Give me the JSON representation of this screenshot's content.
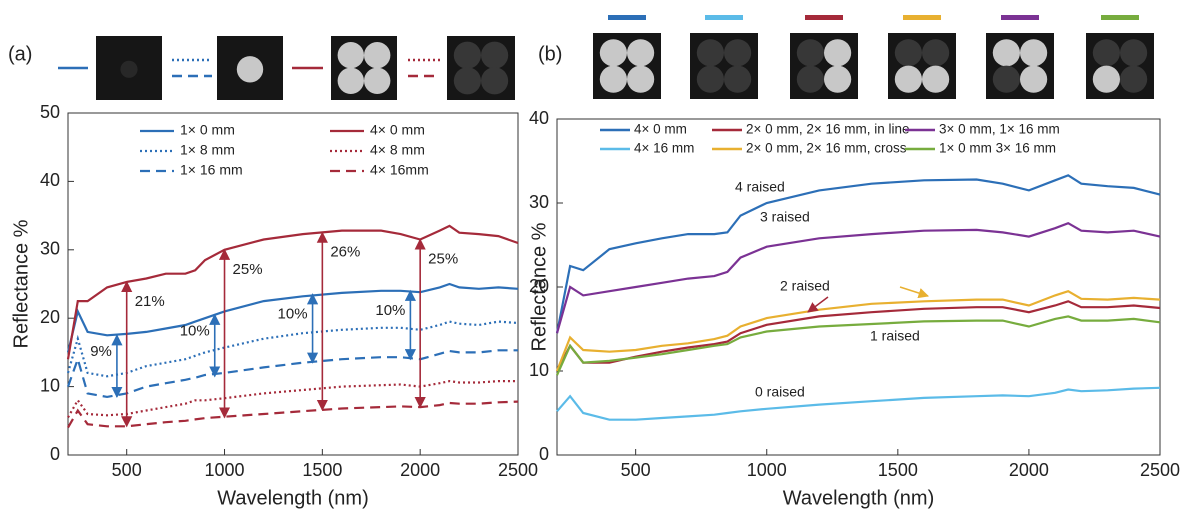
{
  "chart_data": [
    {
      "type": "line",
      "panel_label": "(a)",
      "xlabel": "Wavelength (nm)",
      "ylabel": "Reflectance %",
      "xlim": [
        200,
        2500
      ],
      "xticks": [
        500,
        1000,
        1500,
        2000,
        2500
      ],
      "ylim": [
        0,
        50
      ],
      "yticks": [
        0,
        10,
        20,
        30,
        40,
        50
      ],
      "x": [
        200,
        250,
        300,
        400,
        500,
        600,
        700,
        800,
        850,
        900,
        1000,
        1200,
        1400,
        1600,
        1800,
        1900,
        2000,
        2100,
        2150,
        2200,
        2300,
        2400,
        2500
      ],
      "series": [
        {
          "name": "1× 0 mm",
          "color": "#2c6fb7",
          "style": "solid",
          "values": [
            15,
            21,
            18,
            17.5,
            17.7,
            18,
            18.5,
            19,
            19.5,
            20,
            21,
            22.5,
            23.2,
            23.7,
            24,
            24,
            23.8,
            24.5,
            25,
            24.5,
            24.3,
            24.5,
            24.3
          ]
        },
        {
          "name": "4× 0 mm",
          "color": "#a52a3a",
          "style": "solid",
          "values": [
            14,
            22.5,
            22.5,
            24.5,
            25.3,
            25.8,
            26.5,
            26.5,
            27,
            28.5,
            30,
            31.5,
            32.3,
            32.8,
            32.8,
            32.3,
            31.5,
            32.8,
            33.5,
            32.5,
            32.3,
            32,
            31
          ]
        },
        {
          "name": "1× 8 mm",
          "color": "#2c6fb7",
          "style": "dotted",
          "values": [
            12,
            17,
            12,
            11.5,
            12,
            13,
            13.5,
            14,
            14.5,
            15,
            15.7,
            17,
            17.8,
            18.3,
            18.6,
            18.6,
            18.3,
            19,
            19.5,
            19.2,
            19,
            19.5,
            19.3
          ]
        },
        {
          "name": "4× 8 mm",
          "color": "#a52a3a",
          "style": "dotted",
          "values": [
            5.5,
            8,
            6,
            5.8,
            6,
            6.5,
            7,
            7.5,
            8,
            8,
            8.3,
            9,
            9.5,
            10,
            10.2,
            10.3,
            10,
            10.5,
            10.8,
            10.6,
            10.6,
            10.8,
            10.8
          ]
        },
        {
          "name": "1× 16 mm",
          "color": "#2c6fb7",
          "style": "dashed",
          "values": [
            10,
            14,
            9,
            8.5,
            9,
            10,
            10.5,
            11,
            11.3,
            11.7,
            12,
            12.8,
            13.5,
            14,
            14.3,
            14.3,
            14,
            14.8,
            15.2,
            15,
            15,
            15.3,
            15.3
          ]
        },
        {
          "name": "4× 16mm",
          "color": "#a52a3a",
          "style": "dashed",
          "values": [
            4,
            6.5,
            4.5,
            4.2,
            4.2,
            4.5,
            4.8,
            5,
            5.2,
            5.4,
            5.6,
            6,
            6.4,
            6.8,
            7,
            7.1,
            7,
            7.3,
            7.6,
            7.5,
            7.5,
            7.7,
            7.8
          ]
        }
      ],
      "arrows": [
        {
          "label": "9%",
          "x": 450,
          "from": 8.5,
          "to": 17.5,
          "color": "#2c6fb7"
        },
        {
          "label": "10%",
          "x": 950,
          "from": 11.5,
          "to": 20.5,
          "color": "#2c6fb7"
        },
        {
          "label": "10%",
          "x": 1450,
          "from": 13.5,
          "to": 23.5,
          "color": "#2c6fb7"
        },
        {
          "label": "10%",
          "x": 1950,
          "from": 14,
          "to": 24,
          "color": "#2c6fb7"
        },
        {
          "label": "21%",
          "x": 500,
          "from": 4.2,
          "to": 25.3,
          "color": "#a52a3a"
        },
        {
          "label": "25%",
          "x": 1000,
          "from": 5.5,
          "to": 30,
          "color": "#a52a3a"
        },
        {
          "label": "26%",
          "x": 1500,
          "from": 6.6,
          "to": 32.5,
          "color": "#a52a3a"
        },
        {
          "label": "25%",
          "x": 2000,
          "from": 7,
          "to": 31.5,
          "color": "#a52a3a"
        }
      ]
    },
    {
      "type": "line",
      "panel_label": "(b)",
      "xlabel": "Wavelength (nm)",
      "ylabel": "Reflectance %",
      "xlim": [
        200,
        2500
      ],
      "xticks": [
        500,
        1000,
        1500,
        2000,
        2500
      ],
      "ylim": [
        0,
        40
      ],
      "yticks": [
        0,
        10,
        20,
        30,
        40
      ],
      "x": [
        200,
        250,
        300,
        400,
        500,
        600,
        700,
        800,
        850,
        900,
        1000,
        1200,
        1400,
        1600,
        1800,
        1900,
        2000,
        2100,
        2150,
        2200,
        2300,
        2400,
        2500
      ],
      "series": [
        {
          "name": "4× 0 mm",
          "color": "#2c6fb7",
          "values": [
            14.5,
            22.5,
            22,
            24.5,
            25.2,
            25.8,
            26.3,
            26.3,
            26.5,
            28.5,
            30,
            31.5,
            32.3,
            32.7,
            32.8,
            32.3,
            31.5,
            32.7,
            33.3,
            32.3,
            32,
            31.8,
            31
          ]
        },
        {
          "name": "4× 16 mm",
          "color": "#5bbbe8",
          "values": [
            5.2,
            7,
            5,
            4.2,
            4.2,
            4.4,
            4.6,
            4.8,
            5,
            5.2,
            5.5,
            6,
            6.4,
            6.8,
            7,
            7.1,
            7,
            7.4,
            7.8,
            7.6,
            7.7,
            7.9,
            8
          ]
        },
        {
          "name": "2× 0 mm, 2× 16 mm, in line",
          "color": "#a52a3a",
          "values": [
            10,
            13,
            11,
            11,
            11.7,
            12.3,
            12.8,
            13.2,
            13.5,
            14.5,
            15.5,
            16.5,
            17,
            17.4,
            17.6,
            17.6,
            17,
            17.8,
            18.3,
            17.6,
            17.6,
            17.8,
            17.5
          ]
        },
        {
          "name": "2× 0 mm, 2× 16 mm, cross",
          "color": "#e8b030",
          "values": [
            10,
            14,
            12.5,
            12.3,
            12.5,
            13,
            13.3,
            13.8,
            14.2,
            15.3,
            16.3,
            17.3,
            18,
            18.3,
            18.5,
            18.5,
            17.8,
            19,
            19.5,
            18.6,
            18.5,
            18.7,
            18.5
          ]
        },
        {
          "name": "3× 0 mm, 1× 16 mm",
          "color": "#7b3294",
          "values": [
            14.5,
            20,
            19,
            19.5,
            20,
            20.5,
            21,
            21.3,
            21.8,
            23.5,
            24.8,
            25.8,
            26.3,
            26.7,
            26.8,
            26.5,
            26,
            27,
            27.6,
            26.7,
            26.5,
            26.7,
            26
          ]
        },
        {
          "name": "1× 0 mm 3× 16 mm",
          "color": "#77ac3e",
          "values": [
            9.5,
            13,
            11,
            11.2,
            11.6,
            12,
            12.5,
            13,
            13.2,
            14,
            14.7,
            15.3,
            15.6,
            15.9,
            16,
            16,
            15.3,
            16.2,
            16.5,
            16,
            16,
            16.2,
            15.8
          ]
        }
      ],
      "annotations": [
        "4 raised",
        "3 raised",
        "2 raised",
        "1 raised",
        "0 raised"
      ]
    }
  ]
}
